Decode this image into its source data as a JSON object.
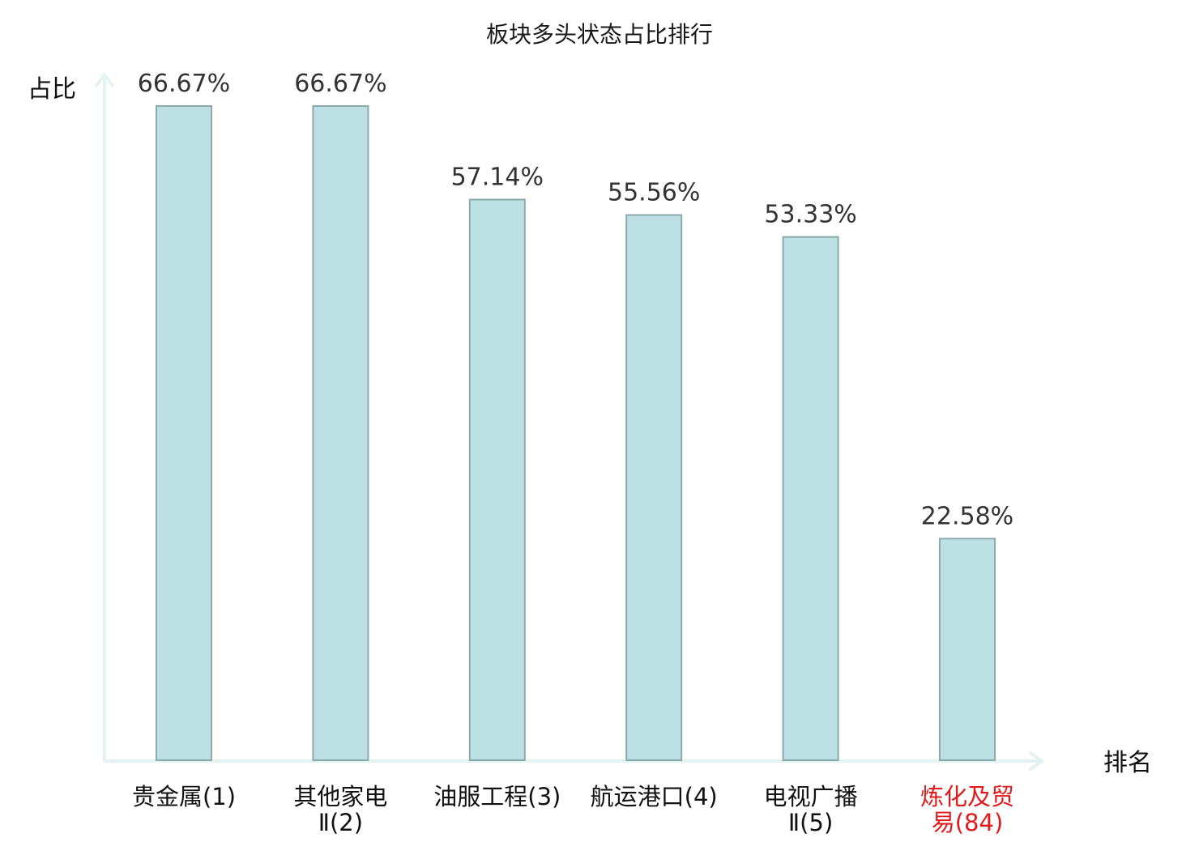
{
  "chart_data": {
    "type": "bar",
    "title": "板块多头状态占比排行",
    "ylabel": "占比",
    "xlabel": "排名",
    "ylim": [
      0,
      70
    ],
    "grid": false,
    "categories": [
      {
        "lines": [
          "贵金属(1)"
        ],
        "highlight": false
      },
      {
        "lines": [
          "其他家电",
          "Ⅱ(2)"
        ],
        "highlight": false
      },
      {
        "lines": [
          "油服工程(3)"
        ],
        "highlight": false
      },
      {
        "lines": [
          "航运港口(4)"
        ],
        "highlight": false
      },
      {
        "lines": [
          "电视广播",
          "Ⅱ(5)"
        ],
        "highlight": false
      },
      {
        "lines": [
          "炼化及贸",
          "易(84)"
        ],
        "highlight": true
      }
    ],
    "values": [
      66.67,
      66.67,
      57.14,
      55.56,
      53.33,
      22.58
    ],
    "value_labels": [
      "66.67%",
      "66.67%",
      "57.14%",
      "55.56%",
      "53.33%",
      "22.58%"
    ],
    "colors": {
      "bar_fill": "#bce0e3",
      "bar_stroke": "#8aa9ab",
      "axis": "#e2f3f1",
      "label": "#111111",
      "highlight_label": "#e31a1c"
    }
  }
}
